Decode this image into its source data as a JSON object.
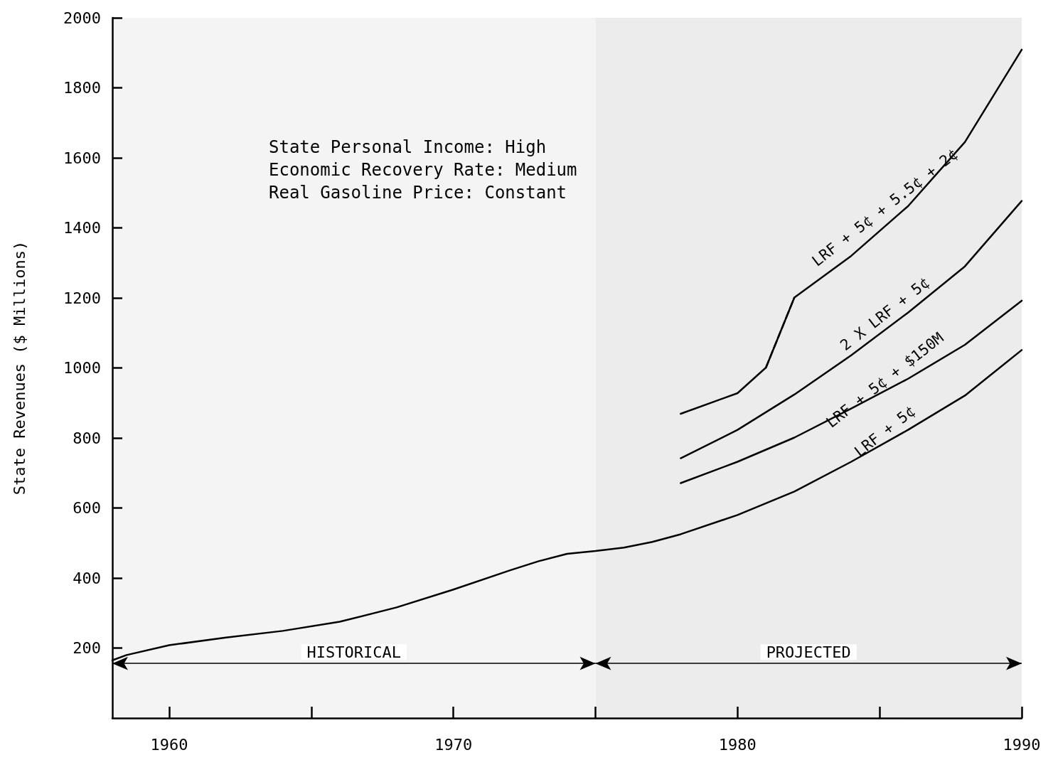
{
  "chart_data": {
    "type": "line",
    "ylabel": "State Revenues ($ Millions)",
    "xlim": [
      1958,
      1990
    ],
    "xticks": [
      1960,
      {
        "value": 1965,
        "label": null
      },
      1970,
      {
        "value": 1975,
        "label": null
      },
      1980,
      {
        "value": 1985,
        "label": null
      },
      1990
    ],
    "ylim": [
      0,
      2000
    ],
    "yticks": [
      200,
      400,
      600,
      800,
      1000,
      1200,
      1400,
      1600,
      1800,
      2000
    ],
    "grid": false,
    "marker": "none",
    "line_style": "solid",
    "annotations": [
      "State Personal Income: High",
      "Economic Recovery Rate: Medium",
      "Real Gasoline Price: Constant"
    ],
    "bands": [
      {
        "axis": "x",
        "from": 1958,
        "to": 1975,
        "label": "HISTORICAL",
        "color": "#f4f4f4"
      },
      {
        "axis": "x",
        "from": 1975,
        "to": 1990,
        "label": "PROJECTED",
        "color": "#ececec"
      }
    ],
    "series": [
      {
        "name": "LRF + 5¢",
        "color": "#000000",
        "x": [
          1958,
          1958.5,
          1960,
          1962,
          1964,
          1966,
          1968,
          1970,
          1972,
          1973,
          1974,
          1975,
          1976,
          1977,
          1978,
          1980,
          1982,
          1984,
          1986,
          1988,
          1990
        ],
        "values": [
          165,
          180,
          208,
          230,
          249,
          275,
          316,
          367,
          422,
          448,
          469,
          477,
          487,
          503,
          525,
          580,
          647,
          732,
          823,
          921,
          1051
        ]
      },
      {
        "name": "LRF + 5¢ + $150M",
        "color": "#000000",
        "x": [
          1978,
          1980,
          1982,
          1984,
          1986,
          1988,
          1990
        ],
        "values": [
          671,
          732,
          801,
          884,
          969,
          1066,
          1192
        ]
      },
      {
        "name": "2 X LRF + 5¢",
        "color": "#000000",
        "x": [
          1978,
          1980,
          1982,
          1984,
          1986,
          1988,
          1990
        ],
        "values": [
          742,
          823,
          924,
          1036,
          1158,
          1290,
          1477
        ]
      },
      {
        "name": "LRF + 5¢ + 5.5¢ + 2¢",
        "color": "#000000",
        "x": [
          1978,
          1980,
          1981,
          1982,
          1984,
          1986,
          1988,
          1990
        ],
        "values": [
          869,
          928,
          1001,
          1201,
          1320,
          1462,
          1645,
          1909
        ]
      },
      {
        "color": "#000000",
        "line_style": "dashed",
        "x": [
          1981,
          1982
        ],
        "values": [
          1001,
          1201
        ]
      }
    ]
  }
}
